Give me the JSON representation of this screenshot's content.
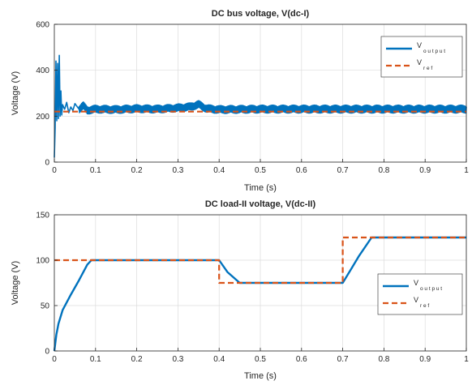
{
  "colors": {
    "output": "#0072BD",
    "ref": "#D95319",
    "grid": "#dcdcdc",
    "axis": "#262626"
  },
  "chart_data": [
    {
      "type": "line",
      "title": "DC bus voltage, V(dc-I)",
      "xlabel": "Time (s)",
      "ylabel": "Voltage (V)",
      "xlim": [
        0,
        1
      ],
      "ylim": [
        0,
        600
      ],
      "xticks": [
        0,
        0.1,
        0.2,
        0.3,
        0.4,
        0.5,
        0.6,
        0.7,
        0.8,
        0.9,
        1
      ],
      "xtick_labels": [
        "0",
        "0.1",
        "0.2",
        "0.3",
        "0.4",
        "0.5",
        "0.6",
        "0.7",
        "0.8",
        "0.9",
        "1"
      ],
      "yticks": [
        0,
        200,
        400,
        600
      ],
      "ytick_labels": [
        "0",
        "200",
        "400",
        "600"
      ],
      "grid": true,
      "legend_position": "top-right",
      "legend": [
        {
          "base": "V",
          "sub": "o u t p u t",
          "style": "solid"
        },
        {
          "base": "V",
          "sub": "r e f",
          "style": "dashed"
        }
      ],
      "series": [
        {
          "name": "V output",
          "x": [
            0,
            0.002,
            0.004,
            0.006,
            0.008,
            0.01,
            0.012,
            0.014,
            0.016,
            0.018,
            0.02,
            0.025,
            0.03,
            0.035,
            0.04,
            0.045,
            0.05,
            0.06,
            0.07,
            0.08,
            0.1,
            0.15,
            0.2,
            0.25,
            0.3,
            0.33,
            0.35,
            0.37,
            0.4,
            0.5,
            0.6,
            0.7,
            0.8,
            0.9,
            1
          ],
          "y": [
            20,
            150,
            440,
            180,
            430,
            190,
            465,
            200,
            310,
            205,
            250,
            230,
            260,
            215,
            240,
            225,
            255,
            230,
            245,
            225,
            230,
            228,
            232,
            230,
            235,
            240,
            250,
            232,
            228,
            230,
            230,
            230,
            230,
            230,
            230
          ],
          "band": 18
        },
        {
          "name": "V ref",
          "x": [
            0,
            1
          ],
          "y": [
            220,
            220
          ]
        }
      ]
    },
    {
      "type": "line",
      "title": "DC load-II voltage, V(dc-II)",
      "xlabel": "Time (s)",
      "ylabel": "Voltage (V)",
      "xlim": [
        0,
        1
      ],
      "ylim": [
        0,
        150
      ],
      "xticks": [
        0,
        0.1,
        0.2,
        0.3,
        0.4,
        0.5,
        0.6,
        0.7,
        0.8,
        0.9,
        1
      ],
      "xtick_labels": [
        "0",
        "0.1",
        "0.2",
        "0.3",
        "0.4",
        "0.5",
        "0.6",
        "0.7",
        "0.8",
        "0.9",
        "1"
      ],
      "yticks": [
        0,
        50,
        100,
        150
      ],
      "ytick_labels": [
        "0",
        "50",
        "100",
        "150"
      ],
      "grid": true,
      "legend_position": "right",
      "legend": [
        {
          "base": "V",
          "sub": "o u t p u t",
          "style": "solid"
        },
        {
          "base": "V",
          "sub": "r e f",
          "style": "dashed"
        }
      ],
      "series": [
        {
          "name": "V output",
          "x": [
            0,
            0.005,
            0.01,
            0.02,
            0.04,
            0.06,
            0.08,
            0.09,
            0.1,
            0.4,
            0.42,
            0.45,
            0.7,
            0.72,
            0.74,
            0.77,
            1
          ],
          "y": [
            0,
            18,
            30,
            45,
            62,
            78,
            95,
            100,
            100,
            100,
            87,
            75,
            75,
            90,
            105,
            125,
            125
          ]
        },
        {
          "name": "V ref",
          "x": [
            0,
            0.1,
            0.4,
            0.4,
            0.7,
            0.7,
            1
          ],
          "y": [
            100,
            100,
            100,
            75,
            75,
            125,
            125
          ]
        }
      ]
    }
  ]
}
